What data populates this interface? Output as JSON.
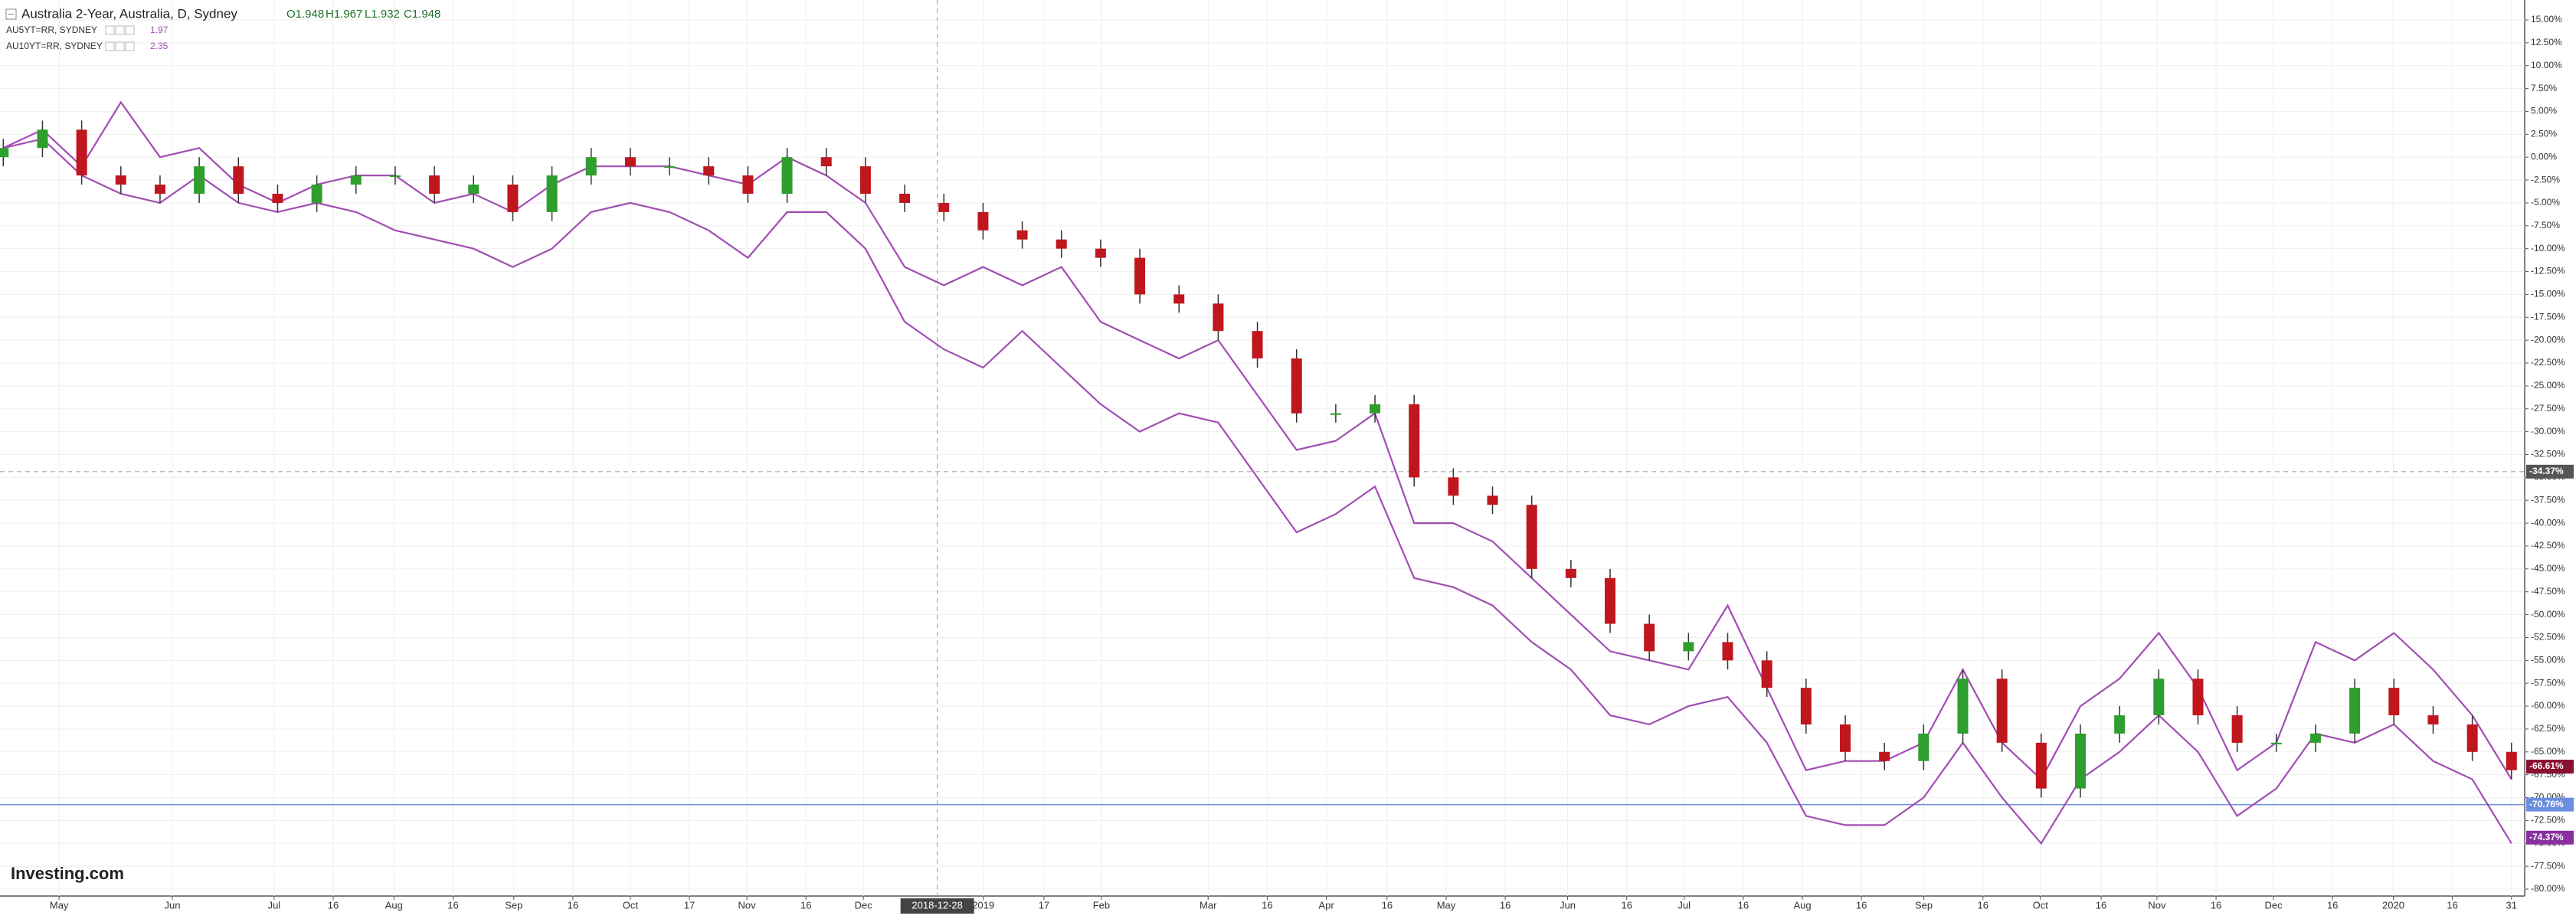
{
  "chart_data": {
    "type": "candlestick",
    "title": "Australia 2-Year, Australia, D, Sydney",
    "ohlc_labels": [
      "O1.948",
      "H1.967",
      "L1.932",
      "C1.948"
    ],
    "logo": "Investing.com",
    "up_color": "#2e9e2e",
    "down_color": "#c0161e",
    "open": [
      0,
      1,
      3,
      -2,
      -3,
      -4,
      -1,
      -4,
      -5,
      -3,
      -2,
      -2,
      -4,
      -3,
      -6,
      -2,
      0,
      -1,
      -1,
      -2,
      -4,
      0,
      -1,
      -4,
      -5,
      -6,
      -8,
      -9,
      -10,
      -11,
      -15,
      -16,
      -19,
      -22,
      -28,
      -28,
      -27,
      -35,
      -37,
      -38,
      -45,
      -46,
      -51,
      -54,
      -53,
      -55,
      -58,
      -62,
      -65,
      -66,
      -63,
      -57,
      -64,
      -69,
      -63,
      -61,
      -57,
      -61,
      -64,
      -64,
      -63,
      -58,
      -61,
      -62,
      -65
    ],
    "high": [
      2,
      4,
      4,
      -1,
      -2,
      0,
      0,
      -3,
      -2,
      -1,
      -1,
      -1,
      -2,
      -2,
      -1,
      1,
      1,
      0,
      0,
      -1,
      1,
      1,
      0,
      -3,
      -4,
      -5,
      -7,
      -8,
      -9,
      -10,
      -14,
      -15,
      -18,
      -21,
      -27,
      -26,
      -26,
      -34,
      -36,
      -37,
      -44,
      -45,
      -50,
      -52,
      -52,
      -54,
      -57,
      -61,
      -64,
      -62,
      -56,
      -56,
      -63,
      -62,
      -60,
      -56,
      -56,
      -60,
      -63,
      -62,
      -57,
      -57,
      -60,
      -61,
      -64
    ],
    "low": [
      -1,
      0,
      -3,
      -4,
      -5,
      -5,
      -5,
      -6,
      -6,
      -4,
      -3,
      -5,
      -5,
      -7,
      -7,
      -3,
      -2,
      -2,
      -3,
      -5,
      -5,
      -2,
      -5,
      -6,
      -7,
      -9,
      -10,
      -11,
      -12,
      -16,
      -17,
      -20,
      -23,
      -29,
      -29,
      -29,
      -36,
      -38,
      -39,
      -46,
      -47,
      -52,
      -55,
      -55,
      -56,
      -59,
      -63,
      -66,
      -67,
      -67,
      -64,
      -65,
      -70,
      -70,
      -64,
      -62,
      -62,
      -65,
      -65,
      -65,
      -64,
      -62,
      -63,
      -66,
      -68
    ],
    "close": [
      1,
      3,
      -2,
      -3,
      -4,
      -1,
      -4,
      -5,
      -3,
      -2,
      -2,
      -4,
      -3,
      -6,
      -2,
      0,
      -1,
      -1,
      -2,
      -4,
      0,
      -1,
      -4,
      -5,
      -6,
      -8,
      -9,
      -10,
      -11,
      -15,
      -16,
      -19,
      -22,
      -28,
      -28,
      -27,
      -35,
      -37,
      -38,
      -45,
      -46,
      -51,
      -54,
      -53,
      -55,
      -58,
      -62,
      -65,
      -66,
      -63,
      -57,
      -64,
      -69,
      -63,
      -61,
      -57,
      -61,
      -64,
      -64,
      -63,
      -58,
      -61,
      -62,
      -65,
      -67
    ],
    "lines": [
      {
        "name": "AU5YT=RR, SYDNEY",
        "last": "1.97",
        "color": "#a24db3",
        "values": [
          1,
          3,
          -1,
          6,
          0,
          1,
          -3,
          -5,
          -3,
          -2,
          -2,
          -5,
          -4,
          -6,
          -3,
          -1,
          -1,
          -1,
          -2,
          -3,
          0,
          -2,
          -5,
          -12,
          -14,
          -12,
          -14,
          -12,
          -18,
          -20,
          -22,
          -20,
          -26,
          -32,
          -31,
          -28,
          -40,
          -40,
          -42,
          -46,
          -50,
          -54,
          -55,
          -56,
          -49,
          -58,
          -67,
          -66,
          -66,
          -64,
          -56,
          -64,
          -68,
          -60,
          -57,
          -52,
          -58,
          -67,
          -64,
          -53,
          -55,
          -52,
          -56,
          -61,
          -68
        ]
      },
      {
        "name": "AU10YT=RR, SYDNEY",
        "last": "2.35",
        "color": "#a24db3",
        "values": [
          1,
          2,
          -2,
          -4,
          -5,
          -2,
          -5,
          -6,
          -5,
          -6,
          -8,
          -9,
          -10,
          -12,
          -10,
          -6,
          -5,
          -6,
          -8,
          -11,
          -6,
          -6,
          -10,
          -18,
          -21,
          -23,
          -19,
          -23,
          -27,
          -30,
          -28,
          -29,
          -35,
          -41,
          -39,
          -36,
          -46,
          -47,
          -49,
          -53,
          -56,
          -61,
          -62,
          -60,
          -59,
          -64,
          -72,
          -73,
          -73,
          -70,
          -64,
          -70,
          -75,
          -68,
          -65,
          -61,
          -65,
          -72,
          -69,
          -63,
          -64,
          -62,
          -66,
          -68,
          -75
        ]
      }
    ],
    "ylim": [
      -80,
      15
    ],
    "yticks": [
      {
        "value": 15,
        "label": "15.00%"
      },
      {
        "value": 12.5,
        "label": "12.50%"
      },
      {
        "value": 10,
        "label": "10.00%"
      },
      {
        "value": 7.5,
        "label": "7.50%"
      },
      {
        "value": 5,
        "label": "5.00%"
      },
      {
        "value": 2.5,
        "label": "2.50%"
      },
      {
        "value": 0,
        "label": "0.00%"
      },
      {
        "value": -2.5,
        "label": "-2.50%"
      },
      {
        "value": -5,
        "label": "-5.00%"
      },
      {
        "value": -7.5,
        "label": "-7.50%"
      },
      {
        "value": -10,
        "label": "-10.00%"
      },
      {
        "value": -12.5,
        "label": "-12.50%"
      },
      {
        "value": -15,
        "label": "-15.00%"
      },
      {
        "value": -17.5,
        "label": "-17.50%"
      },
      {
        "value": -20,
        "label": "-20.00%"
      },
      {
        "value": -22.5,
        "label": "-22.50%"
      },
      {
        "value": -25,
        "label": "-25.00%"
      },
      {
        "value": -27.5,
        "label": "-27.50%"
      },
      {
        "value": -30,
        "label": "-30.00%"
      },
      {
        "value": -32.5,
        "label": "-32.50%"
      },
      {
        "value": -35,
        "label": "-35.00%"
      },
      {
        "value": -37.5,
        "label": "-37.50%"
      },
      {
        "value": -40,
        "label": "-40.00%"
      },
      {
        "value": -42.5,
        "label": "-42.50%"
      },
      {
        "value": -45,
        "label": "-45.00%"
      },
      {
        "value": -47.5,
        "label": "-47.50%"
      },
      {
        "value": -50,
        "label": "-50.00%"
      },
      {
        "value": -52.5,
        "label": "-52.50%"
      },
      {
        "value": -55,
        "label": "-55.00%"
      },
      {
        "value": -57.5,
        "label": "-57.50%"
      },
      {
        "value": -60,
        "label": "-60.00%"
      },
      {
        "value": -62.5,
        "label": "-62.50%"
      },
      {
        "value": -65,
        "label": "-65.00%"
      },
      {
        "value": -67.5,
        "label": "-67.50%"
      },
      {
        "value": -70,
        "label": "-70.00%"
      },
      {
        "value": -72.5,
        "label": "-72.50%"
      },
      {
        "value": -75,
        "label": "-75.00%"
      },
      {
        "value": -77.5,
        "label": "-77.50%"
      },
      {
        "value": -80,
        "label": "-80.00%"
      }
    ],
    "x_labels": [
      "May",
      "Jun",
      "Jul",
      "16",
      "Aug",
      "16",
      "Sep",
      "16",
      "Oct",
      "17",
      "Nov",
      "16",
      "Dec",
      "2019",
      "17",
      "Feb",
      "Mar",
      "16",
      "Apr",
      "16",
      "May",
      "16",
      "Jun",
      "16",
      "Jul",
      "16",
      "Aug",
      "16",
      "Sep",
      "16",
      "Oct",
      "16",
      "Nov",
      "16",
      "Dec",
      "16",
      "2020",
      "16",
      "31"
    ],
    "crosshair": {
      "value": -34.37,
      "label": "-34.37%",
      "x_label": "2018-12-28"
    },
    "hline": {
      "value": -70.76,
      "label": "-70.76%",
      "color": "#6b8fe0"
    },
    "price_labels": [
      {
        "value": -66.61,
        "label": "-66.61%",
        "color": "#8a1030"
      },
      {
        "value": -74.37,
        "label": "-74.37%",
        "color": "#8a2fa0"
      }
    ],
    "grid": true
  }
}
